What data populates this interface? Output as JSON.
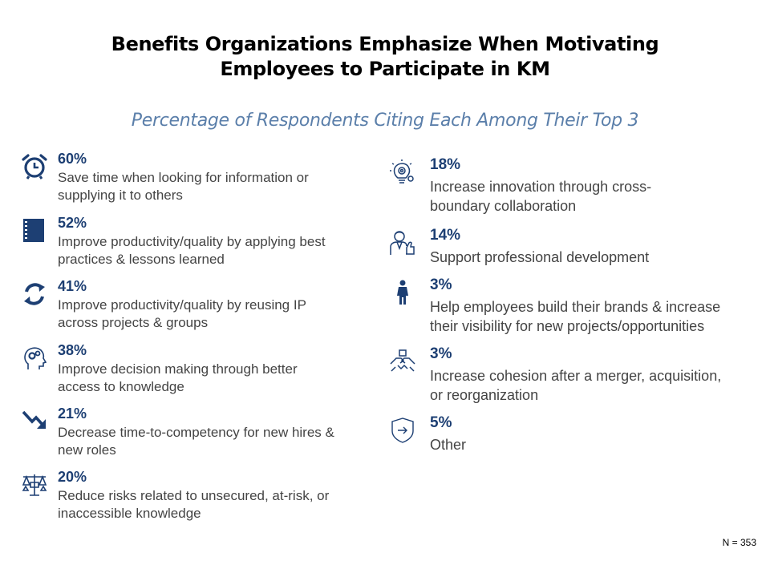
{
  "chart_data": {
    "type": "table",
    "title": [
      "Benefits Organizations Emphasize When Motivating",
      "Employees to Participate  in KM"
    ],
    "subtitle": "Percentage of Respondents Citing Each Among Their Top 3",
    "items": [
      {
        "value": "60%",
        "label": [
          "Save time when looking for information or",
          "supplying it to others"
        ],
        "icon": "alarm-clock-icon"
      },
      {
        "value": "52%",
        "label": [
          "Improve productivity/quality by applying best",
          "practices & lessons learned"
        ],
        "icon": "notebook-icon"
      },
      {
        "value": "41%",
        "label": [
          "Improve productivity/quality by reusing IP",
          "across projects & groups"
        ],
        "icon": "recycle-arrows-icon"
      },
      {
        "value": "38%",
        "label": [
          "Improve decision making through better",
          "access to knowledge"
        ],
        "icon": "head-gears-icon"
      },
      {
        "value": "21%",
        "label": [
          "Decrease time-to-competency for new hires &",
          "new roles"
        ],
        "icon": "trend-down-icon"
      },
      {
        "value": "20%",
        "label": [
          "Reduce risks related to unsecured, at-risk, or",
          "inaccessible knowledge"
        ],
        "icon": "balance-scales-icon"
      },
      {
        "value": "18%",
        "label": [
          "Increase innovation through cross-",
          "boundary collaboration"
        ],
        "icon": "lightbulb-gear-icon"
      },
      {
        "value": "14%",
        "label": [
          "Support professional development"
        ],
        "icon": "professional-thumbs-up-icon"
      },
      {
        "value": "3%",
        "label": [
          "Help employees build their brands & increase",
          "their visibility for new projects/opportunities"
        ],
        "icon": "person-icon"
      },
      {
        "value": "3%",
        "label": [
          "Increase cohesion after a merger, acquisition,",
          "or reorganization"
        ],
        "icon": "joined-hands-icon"
      },
      {
        "value": "5%",
        "label": [
          "Other"
        ],
        "icon": "shield-arrow-icon"
      }
    ],
    "note": "N = 353"
  }
}
